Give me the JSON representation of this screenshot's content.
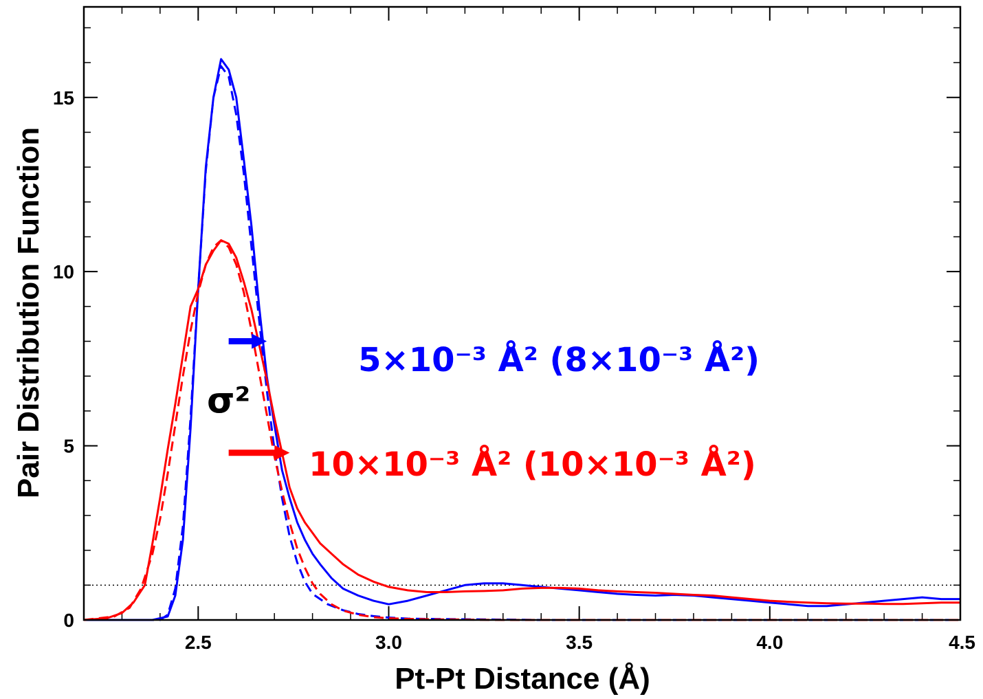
{
  "chart_data": {
    "type": "line",
    "xlabel": "Pt-Pt Distance (Å)",
    "ylabel": "Pair Distribution Function",
    "xlim": [
      2.2,
      4.5
    ],
    "ylim": [
      0,
      17.6
    ],
    "x_ticks": [
      2.5,
      3.0,
      3.5,
      4.0,
      4.5
    ],
    "x_tick_labels": [
      "2.5",
      "3.0",
      "3.5",
      "4.0",
      "4.5"
    ],
    "y_ticks": [
      0,
      5,
      10,
      15
    ],
    "y_tick_labels": [
      "0",
      "5",
      "10",
      "15"
    ],
    "reference_line": {
      "y": 1,
      "style": "dotted",
      "color": "#000000"
    },
    "grid": false,
    "series": [
      {
        "color": "#0000ff",
        "style": "solid",
        "x": [
          2.2,
          2.38,
          2.42,
          2.44,
          2.46,
          2.48,
          2.5,
          2.52,
          2.54,
          2.56,
          2.58,
          2.6,
          2.62,
          2.64,
          2.66,
          2.68,
          2.7,
          2.72,
          2.74,
          2.76,
          2.78,
          2.8,
          2.82,
          2.85,
          2.88,
          2.92,
          2.96,
          3.0,
          3.05,
          3.1,
          3.15,
          3.2,
          3.25,
          3.3,
          3.35,
          3.4,
          3.45,
          3.5,
          3.55,
          3.6,
          3.65,
          3.7,
          3.75,
          3.8,
          3.85,
          3.9,
          3.95,
          4.0,
          4.05,
          4.1,
          4.15,
          4.2,
          4.25,
          4.3,
          4.35,
          4.4,
          4.45,
          4.5
        ],
        "y": [
          0,
          0,
          0.1,
          0.7,
          2.3,
          5.5,
          9.5,
          13.0,
          15.0,
          16.1,
          15.8,
          15.0,
          13.2,
          11.3,
          9.0,
          7.0,
          5.6,
          4.3,
          3.5,
          2.8,
          2.3,
          1.9,
          1.6,
          1.2,
          0.9,
          0.7,
          0.55,
          0.45,
          0.55,
          0.7,
          0.85,
          1.0,
          1.05,
          1.05,
          1.0,
          0.95,
          0.9,
          0.85,
          0.8,
          0.75,
          0.72,
          0.7,
          0.72,
          0.7,
          0.65,
          0.6,
          0.55,
          0.5,
          0.45,
          0.4,
          0.4,
          0.45,
          0.5,
          0.55,
          0.6,
          0.65,
          0.6,
          0.6
        ]
      },
      {
        "color": "#0000ff",
        "style": "dashed",
        "x": [
          2.2,
          2.4,
          2.42,
          2.44,
          2.46,
          2.48,
          2.5,
          2.52,
          2.54,
          2.56,
          2.58,
          2.6,
          2.62,
          2.64,
          2.66,
          2.68,
          2.7,
          2.72,
          2.74,
          2.76,
          2.78,
          2.8,
          2.84,
          2.88,
          2.92,
          2.96,
          3.0,
          3.05,
          3.1,
          3.2,
          3.3,
          3.4,
          4.5
        ],
        "y": [
          0,
          0,
          0.15,
          0.9,
          2.7,
          5.8,
          9.5,
          12.9,
          15.0,
          15.9,
          15.6,
          14.5,
          12.8,
          10.7,
          8.6,
          6.6,
          4.9,
          3.5,
          2.4,
          1.65,
          1.1,
          0.75,
          0.45,
          0.28,
          0.17,
          0.11,
          0.07,
          0.04,
          0.03,
          0.02,
          0.01,
          0,
          0
        ]
      },
      {
        "color": "#ff0000",
        "style": "solid",
        "x": [
          2.2,
          2.26,
          2.3,
          2.33,
          2.36,
          2.38,
          2.4,
          2.42,
          2.44,
          2.46,
          2.48,
          2.5,
          2.52,
          2.54,
          2.56,
          2.58,
          2.6,
          2.62,
          2.64,
          2.66,
          2.68,
          2.7,
          2.72,
          2.74,
          2.76,
          2.78,
          2.8,
          2.82,
          2.85,
          2.88,
          2.92,
          2.96,
          3.0,
          3.05,
          3.1,
          3.15,
          3.2,
          3.25,
          3.3,
          3.35,
          3.4,
          3.45,
          3.5,
          3.55,
          3.6,
          3.65,
          3.7,
          3.75,
          3.8,
          3.85,
          3.9,
          3.95,
          4.0,
          4.05,
          4.1,
          4.15,
          4.2,
          4.25,
          4.3,
          4.35,
          4.4,
          4.45,
          4.5
        ],
        "y": [
          0,
          0.05,
          0.2,
          0.5,
          1.0,
          2.2,
          3.5,
          4.9,
          6.2,
          7.6,
          9.0,
          9.5,
          10.2,
          10.6,
          10.9,
          10.8,
          10.4,
          9.7,
          8.9,
          7.9,
          6.9,
          5.8,
          4.8,
          3.8,
          3.2,
          2.8,
          2.5,
          2.2,
          1.9,
          1.6,
          1.3,
          1.1,
          0.95,
          0.85,
          0.8,
          0.8,
          0.82,
          0.83,
          0.85,
          0.9,
          0.92,
          0.92,
          0.9,
          0.85,
          0.82,
          0.8,
          0.78,
          0.75,
          0.72,
          0.7,
          0.65,
          0.6,
          0.55,
          0.52,
          0.5,
          0.48,
          0.47,
          0.47,
          0.46,
          0.46,
          0.48,
          0.5,
          0.5
        ]
      },
      {
        "color": "#ff0000",
        "style": "dashed",
        "x": [
          2.2,
          2.28,
          2.32,
          2.35,
          2.38,
          2.4,
          2.42,
          2.44,
          2.46,
          2.48,
          2.5,
          2.52,
          2.54,
          2.56,
          2.58,
          2.6,
          2.62,
          2.64,
          2.66,
          2.68,
          2.7,
          2.72,
          2.74,
          2.76,
          2.78,
          2.8,
          2.82,
          2.85,
          2.88,
          2.92,
          2.96,
          3.0,
          3.05,
          3.1,
          3.2,
          3.3,
          4.5
        ],
        "y": [
          0,
          0.1,
          0.35,
          0.9,
          1.9,
          2.9,
          4.2,
          5.6,
          7.0,
          8.3,
          9.4,
          10.2,
          10.7,
          10.9,
          10.7,
          10.2,
          9.4,
          8.3,
          7.1,
          5.9,
          4.7,
          3.7,
          2.8,
          2.05,
          1.5,
          1.05,
          0.75,
          0.45,
          0.27,
          0.15,
          0.08,
          0.05,
          0.03,
          0.02,
          0.01,
          0,
          0
        ]
      }
    ],
    "annotations": [
      {
        "id": "sigma",
        "text": "σ²",
        "x": 2.58,
        "y": 6.3,
        "color": "#000000"
      },
      {
        "id": "blue-value",
        "text": "5×10⁻³ Å² (8×10⁻³ Å²)",
        "x": 2.92,
        "y": 7.5,
        "color": "#0000ff"
      },
      {
        "id": "red-value",
        "text": "10×10⁻³ Å² (10×10⁻³ Å²)",
        "x": 2.79,
        "y": 4.5,
        "color": "#ff0000"
      }
    ],
    "arrows": [
      {
        "id": "blue-arrow",
        "x0": 2.58,
        "x1": 2.68,
        "y": 8.0,
        "color": "#0000ff"
      },
      {
        "id": "red-arrow",
        "x0": 2.58,
        "x1": 2.74,
        "y": 4.8,
        "color": "#ff0000"
      }
    ]
  }
}
